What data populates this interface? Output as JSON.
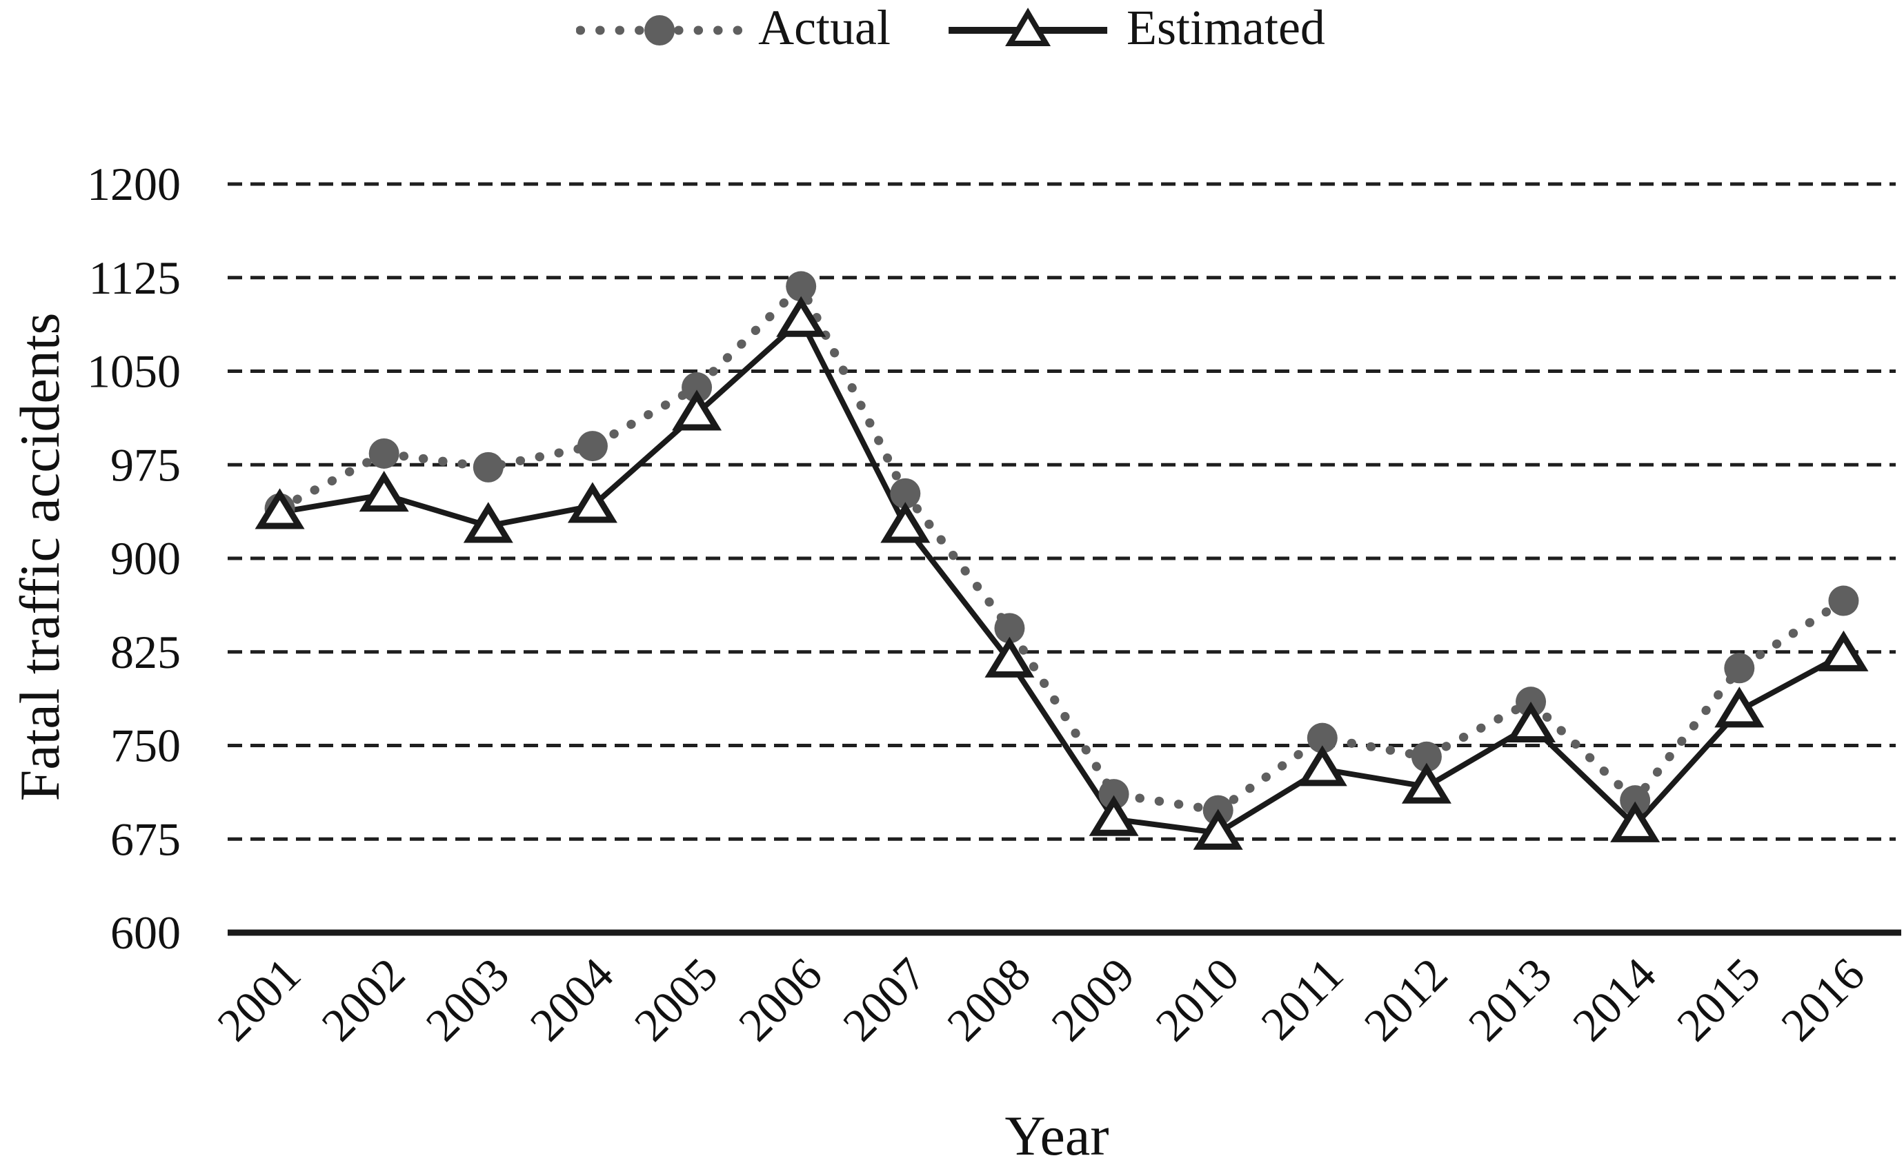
{
  "figure": {
    "background": "#ffffff",
    "text_color": "#111111"
  },
  "chart_data": {
    "type": "line",
    "title": "",
    "xlabel": "Year",
    "ylabel": "Fatal traffic accidents",
    "categories": [
      "2001",
      "2002",
      "2003",
      "2004",
      "2005",
      "2006",
      "2007",
      "2008",
      "2009",
      "2010",
      "2011",
      "2012",
      "2013",
      "2014",
      "2015",
      "2016"
    ],
    "series": [
      {
        "name": "Actual",
        "line_style": "dotted",
        "marker": "filled-circle",
        "color": "#5f5f5f",
        "values": [
          940,
          984,
          973,
          990,
          1037,
          1118,
          952,
          844,
          711,
          698,
          756,
          741,
          785,
          706,
          812,
          866
        ]
      },
      {
        "name": "Estimated",
        "line_style": "solid",
        "marker": "open-triangle",
        "color": "#1a1a1a",
        "marker_fill": "#ffffff",
        "values": [
          937,
          951,
          926,
          942,
          1016,
          1091,
          926,
          818,
          691,
          680,
          731,
          717,
          766,
          686,
          778,
          823
        ]
      }
    ],
    "ylim": [
      600,
      1200
    ],
    "yticks": [
      600,
      675,
      750,
      825,
      900,
      975,
      1050,
      1125,
      1200
    ],
    "grid": {
      "horizontal": true,
      "style": "dashed",
      "color": "#1f1f1f"
    },
    "axis_color": "#1a1a1a",
    "legend_position": "top-center"
  }
}
